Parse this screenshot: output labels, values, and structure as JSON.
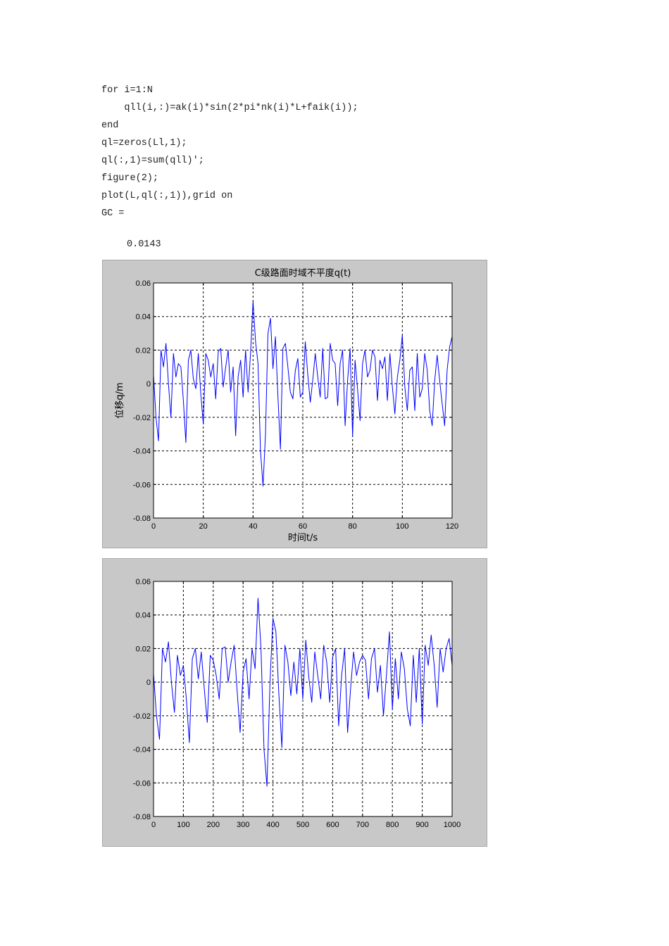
{
  "code_lines": [
    "for i=1:N",
    "    qll(i,:)=ak(i)*sin(2*pi*nk(i)*L+faik(i));",
    "end",
    "ql=zeros(Ll,1);",
    "ql(:,1)=sum(qll)';",
    "figure(2);",
    "plot(L,ql(:,1)),grid on",
    "GC ="
  ],
  "result_value": "0.0143",
  "colors": {
    "line": "#0000ff",
    "figure_bg": "#c8c8c8",
    "axes_bg": "#ffffff",
    "grid": "#000000"
  },
  "chart_data": [
    {
      "type": "line",
      "title": "C级路面时域不平度q(t)",
      "xlabel": "时间t/s",
      "ylabel": "位移q/m",
      "xlim": [
        0,
        120
      ],
      "ylim": [
        -0.08,
        0.06
      ],
      "xticks": [
        "0",
        "20",
        "40",
        "60",
        "80",
        "100",
        "120"
      ],
      "yticks": [
        "0.06",
        "0.04",
        "0.02",
        "0",
        "-0.02",
        "-0.04",
        "-0.06",
        "-0.08"
      ],
      "grid": true,
      "series": [
        {
          "x": [
            0,
            1,
            2,
            3,
            4,
            5,
            6,
            7,
            8,
            9,
            10,
            11,
            12,
            13,
            14,
            15,
            16,
            17,
            18,
            19,
            20,
            21,
            22,
            23,
            24,
            25,
            26,
            27,
            28,
            29,
            30,
            31,
            32,
            33,
            34,
            35,
            36,
            37,
            38,
            39,
            40,
            41,
            42,
            43,
            44,
            45,
            46,
            47,
            48,
            49,
            50,
            51,
            52,
            53,
            54,
            55,
            56,
            57,
            58,
            59,
            60,
            61,
            62,
            63,
            64,
            65,
            66,
            67,
            68,
            69,
            70,
            71,
            72,
            73,
            74,
            75,
            76,
            77,
            78,
            79,
            80,
            81,
            82,
            83,
            84,
            85,
            86,
            87,
            88,
            89,
            90,
            91,
            92,
            93,
            94,
            95,
            96,
            97,
            98,
            99,
            100,
            101,
            102,
            103,
            104,
            105,
            106,
            107,
            108,
            109,
            110,
            111,
            112,
            113,
            114,
            115,
            116,
            117,
            118,
            119,
            120
          ],
          "y": [
            0.005,
            -0.02,
            -0.034,
            0.02,
            0.01,
            0.024,
            0.0,
            -0.02,
            0.018,
            0.004,
            0.012,
            0.01,
            -0.01,
            -0.035,
            0.014,
            0.02,
            0.003,
            -0.003,
            0.018,
            -0.006,
            -0.024,
            0.018,
            0.014,
            0.004,
            0.012,
            -0.009,
            0.019,
            0.021,
            -0.002,
            0.01,
            0.02,
            -0.005,
            0.01,
            -0.031,
            0.004,
            0.014,
            -0.008,
            0.02,
            -0.005,
            0.018,
            0.049,
            0.025,
            0.012,
            -0.04,
            -0.061,
            -0.03,
            0.03,
            0.039,
            0.009,
            0.028,
            -0.008,
            -0.039,
            0.021,
            0.024,
            0.01,
            -0.005,
            -0.009,
            0.008,
            0.015,
            -0.008,
            -0.005,
            0.025,
            0.005,
            -0.011,
            0.002,
            0.018,
            0.004,
            -0.008,
            0.021,
            -0.009,
            -0.008,
            0.024,
            0.014,
            0.012,
            -0.013,
            0.012,
            0.02,
            -0.025,
            0.002,
            0.021,
            -0.031,
            0.014,
            -0.003,
            -0.022,
            0.012,
            0.02,
            0.004,
            0.008,
            0.02,
            0.016,
            -0.01,
            0.014,
            0.009,
            0.016,
            -0.01,
            0.018,
            -0.002,
            -0.018,
            0.004,
            0.014,
            0.029,
            -0.002,
            -0.016,
            0.008,
            0.01,
            -0.016,
            0.018,
            -0.008,
            -0.003,
            0.018,
            0.008,
            -0.016,
            -0.025,
            0.002,
            0.017,
            0.002,
            -0.012,
            -0.025,
            0.008,
            0.022,
            0.028
          ]
        }
      ]
    },
    {
      "type": "line",
      "title": "",
      "xlabel": "",
      "ylabel": "",
      "xlim": [
        0,
        1000
      ],
      "ylim": [
        -0.08,
        0.06
      ],
      "xticks": [
        "0",
        "100",
        "200",
        "300",
        "400",
        "500",
        "600",
        "700",
        "800",
        "900",
        "1000"
      ],
      "yticks": [
        "0.06",
        "0.04",
        "0.02",
        "0",
        "-0.02",
        "-0.04",
        "-0.06",
        "-0.08"
      ],
      "grid": true,
      "series": [
        {
          "x": [
            0,
            10,
            20,
            30,
            40,
            50,
            60,
            70,
            80,
            90,
            100,
            110,
            120,
            130,
            140,
            150,
            160,
            170,
            180,
            190,
            200,
            210,
            220,
            230,
            240,
            250,
            260,
            270,
            280,
            290,
            300,
            310,
            320,
            330,
            340,
            350,
            360,
            370,
            380,
            390,
            400,
            410,
            420,
            430,
            440,
            450,
            460,
            470,
            480,
            490,
            500,
            510,
            520,
            530,
            540,
            550,
            560,
            570,
            580,
            590,
            600,
            610,
            620,
            630,
            640,
            650,
            660,
            670,
            680,
            690,
            700,
            710,
            720,
            730,
            740,
            750,
            760,
            770,
            780,
            790,
            800,
            810,
            820,
            830,
            840,
            850,
            860,
            870,
            880,
            890,
            900,
            910,
            920,
            930,
            940,
            950,
            960,
            970,
            980,
            990,
            1000
          ],
          "y": [
            0.005,
            -0.02,
            -0.034,
            0.02,
            0.012,
            0.024,
            0.0,
            -0.018,
            0.016,
            0.004,
            0.01,
            -0.01,
            -0.036,
            0.014,
            0.02,
            0.002,
            0.018,
            -0.004,
            -0.024,
            0.016,
            0.013,
            0.004,
            -0.01,
            0.02,
            0.021,
            0.0,
            0.012,
            0.022,
            -0.005,
            -0.03,
            0.006,
            0.014,
            -0.01,
            0.02,
            0.008,
            0.05,
            0.02,
            -0.04,
            -0.062,
            0.0,
            0.038,
            0.03,
            -0.008,
            -0.039,
            0.022,
            0.012,
            -0.008,
            0.012,
            -0.007,
            0.02,
            -0.01,
            0.025,
            0.003,
            -0.012,
            0.018,
            0.004,
            -0.01,
            0.022,
            0.012,
            -0.012,
            0.015,
            0.02,
            -0.026,
            0.004,
            0.02,
            -0.03,
            -0.004,
            0.018,
            0.004,
            0.012,
            0.016,
            0.013,
            -0.01,
            0.014,
            0.02,
            -0.006,
            0.01,
            -0.02,
            0.004,
            0.03,
            -0.016,
            0.014,
            -0.01,
            0.018,
            0.008,
            -0.016,
            -0.026,
            0.016,
            -0.012,
            0.02,
            -0.025,
            0.022,
            0.01,
            0.028,
            0.01,
            -0.015,
            0.02,
            0.006,
            0.02,
            0.026,
            0.01
          ]
        }
      ]
    }
  ]
}
